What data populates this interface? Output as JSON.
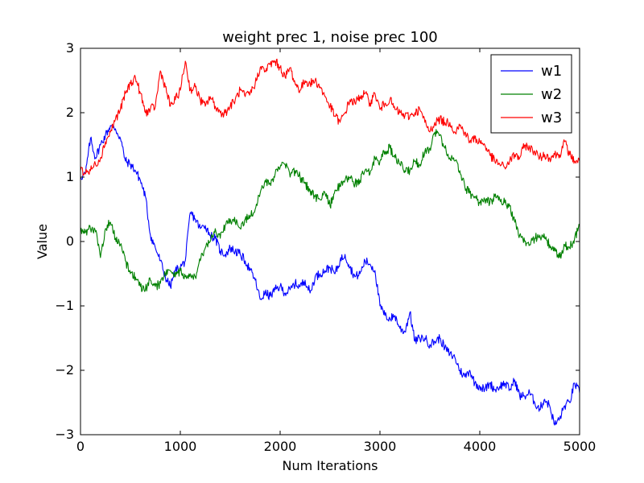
{
  "chart_data": {
    "type": "line",
    "title": "weight prec 1, noise prec 100",
    "xlabel": "Num Iterations",
    "ylabel": "Value",
    "xlim": [
      0,
      5000
    ],
    "ylim": [
      -3,
      3
    ],
    "xticks": [
      0,
      1000,
      2000,
      3000,
      4000,
      5000
    ],
    "xtick_labels": [
      "0",
      "1000",
      "2000",
      "3000",
      "4000",
      "5000"
    ],
    "yticks": [
      -3,
      -2,
      -1,
      0,
      1,
      2,
      3
    ],
    "ytick_labels": [
      "−3",
      "−2",
      "−1",
      "0",
      "1",
      "2",
      "3"
    ],
    "legend_position": "top-right",
    "x": [
      0,
      50,
      100,
      150,
      200,
      250,
      300,
      350,
      400,
      450,
      500,
      550,
      600,
      650,
      700,
      750,
      800,
      850,
      900,
      950,
      1000,
      1050,
      1100,
      1150,
      1200,
      1250,
      1300,
      1350,
      1400,
      1450,
      1500,
      1550,
      1600,
      1650,
      1700,
      1750,
      1800,
      1850,
      1900,
      1950,
      2000,
      2050,
      2100,
      2150,
      2200,
      2250,
      2300,
      2350,
      2400,
      2450,
      2500,
      2550,
      2600,
      2650,
      2700,
      2750,
      2800,
      2850,
      2900,
      2950,
      3000,
      3050,
      3100,
      3150,
      3200,
      3250,
      3300,
      3350,
      3400,
      3450,
      3500,
      3550,
      3600,
      3650,
      3700,
      3750,
      3800,
      3850,
      3900,
      3950,
      4000,
      4050,
      4100,
      4150,
      4200,
      4250,
      4300,
      4350,
      4400,
      4450,
      4500,
      4550,
      4600,
      4650,
      4700,
      4750,
      4800,
      4850,
      4900,
      4950,
      5000
    ],
    "series": [
      {
        "name": "w1",
        "color": "#0000ff",
        "values": [
          1.0,
          1.05,
          1.6,
          1.3,
          1.5,
          1.65,
          1.8,
          1.75,
          1.6,
          1.25,
          1.2,
          1.1,
          0.95,
          0.7,
          0.1,
          -0.1,
          -0.3,
          -0.55,
          -0.7,
          -0.45,
          -0.4,
          -0.3,
          0.45,
          0.35,
          0.2,
          0.25,
          0.1,
          0.05,
          -0.15,
          -0.2,
          -0.1,
          -0.15,
          -0.2,
          -0.3,
          -0.45,
          -0.6,
          -0.9,
          -0.8,
          -0.85,
          -0.75,
          -0.7,
          -0.8,
          -0.75,
          -0.65,
          -0.7,
          -0.6,
          -0.8,
          -0.55,
          -0.5,
          -0.45,
          -0.4,
          -0.5,
          -0.3,
          -0.2,
          -0.4,
          -0.55,
          -0.5,
          -0.3,
          -0.35,
          -0.45,
          -1.0,
          -1.15,
          -1.2,
          -1.15,
          -1.35,
          -1.4,
          -1.1,
          -1.55,
          -1.5,
          -1.5,
          -1.6,
          -1.55,
          -1.5,
          -1.65,
          -1.75,
          -1.8,
          -2.0,
          -2.1,
          -2.0,
          -2.2,
          -2.25,
          -2.3,
          -2.2,
          -2.3,
          -2.25,
          -2.2,
          -2.3,
          -2.15,
          -2.4,
          -2.4,
          -2.35,
          -2.5,
          -2.6,
          -2.45,
          -2.55,
          -2.85,
          -2.75,
          -2.55,
          -2.5,
          -2.2,
          -2.35
        ]
      },
      {
        "name": "w2",
        "color": "#008000",
        "values": [
          0.2,
          0.15,
          0.2,
          0.15,
          -0.25,
          0.2,
          0.3,
          0.05,
          -0.05,
          -0.3,
          -0.5,
          -0.55,
          -0.7,
          -0.75,
          -0.6,
          -0.7,
          -0.65,
          -0.5,
          -0.45,
          -0.55,
          -0.45,
          -0.55,
          -0.5,
          -0.55,
          -0.3,
          -0.1,
          0.0,
          0.2,
          0.05,
          0.25,
          0.35,
          0.3,
          0.2,
          0.35,
          0.4,
          0.5,
          0.75,
          0.95,
          0.9,
          1.05,
          1.15,
          1.2,
          1.0,
          1.1,
          1.0,
          0.9,
          0.8,
          0.7,
          0.65,
          0.75,
          0.55,
          0.8,
          0.85,
          0.95,
          1.0,
          0.9,
          0.95,
          1.1,
          1.05,
          1.3,
          1.25,
          1.4,
          1.45,
          1.3,
          1.2,
          1.1,
          1.1,
          1.25,
          1.2,
          1.4,
          1.45,
          1.7,
          1.65,
          1.45,
          1.3,
          1.25,
          1.1,
          0.85,
          0.75,
          0.7,
          0.6,
          0.65,
          0.6,
          0.7,
          0.65,
          0.6,
          0.55,
          0.3,
          0.1,
          0.0,
          -0.05,
          0.05,
          0.1,
          0.05,
          -0.05,
          -0.15,
          -0.25,
          -0.05,
          -0.1,
          0.05,
          0.25
        ]
      },
      {
        "name": "w3",
        "color": "#ff0000",
        "values": [
          1.1,
          1.05,
          1.1,
          1.2,
          1.3,
          1.55,
          1.7,
          1.9,
          2.05,
          2.3,
          2.45,
          2.55,
          2.3,
          2.0,
          2.05,
          2.1,
          2.65,
          2.4,
          2.1,
          2.2,
          2.35,
          2.8,
          2.35,
          2.4,
          2.2,
          2.1,
          2.25,
          2.1,
          2.0,
          2.0,
          2.1,
          2.2,
          2.35,
          2.25,
          2.3,
          2.45,
          2.7,
          2.65,
          2.75,
          2.8,
          2.7,
          2.55,
          2.7,
          2.45,
          2.35,
          2.5,
          2.45,
          2.5,
          2.4,
          2.25,
          2.1,
          1.95,
          1.85,
          2.0,
          2.2,
          2.15,
          2.25,
          2.3,
          2.15,
          2.3,
          2.05,
          2.15,
          2.2,
          2.05,
          2.0,
          1.95,
          1.95,
          2.0,
          2.05,
          1.85,
          1.7,
          1.85,
          1.9,
          1.85,
          1.85,
          1.7,
          1.8,
          1.7,
          1.55,
          1.6,
          1.55,
          1.5,
          1.35,
          1.25,
          1.2,
          1.15,
          1.25,
          1.35,
          1.3,
          1.5,
          1.45,
          1.4,
          1.3,
          1.35,
          1.3,
          1.35,
          1.35,
          1.55,
          1.35,
          1.25,
          1.25
        ]
      }
    ]
  }
}
